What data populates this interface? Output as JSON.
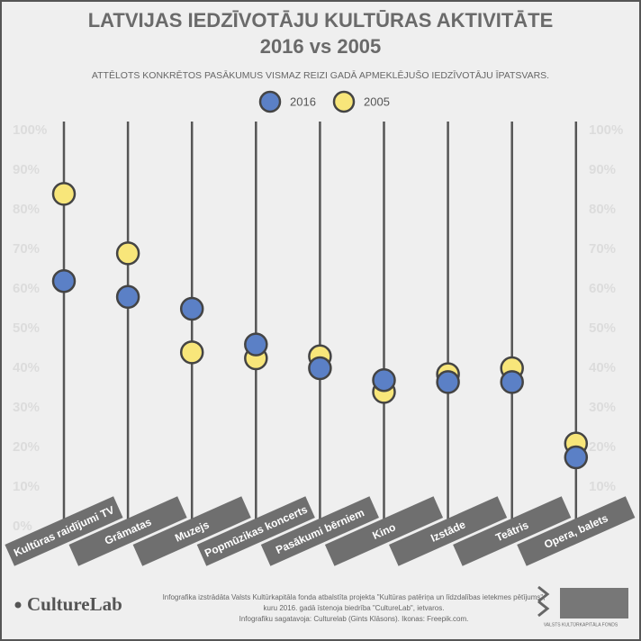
{
  "chart_data": {
    "type": "dotplot",
    "title": "LATVIJAS IEDZĪVOTĀJU KULTŪRAS AKTIVITĀTE",
    "subtitle": "2016 vs 2005",
    "description": "ATTĒLOTS KONKRĒTOS PASĀKUMUS VISMAZ REIZI GADĀ APMEKLĒJUŠO IEDZĪVOTĀJU ĪPATSVARS.",
    "categories": [
      "Kultūras raidījumi TV",
      "Grāmatas",
      "Muzejs",
      "Popmūzikas koncerts",
      "Pasākumi bērniem",
      "Kino",
      "Izstāde",
      "Teātris",
      "Opera, balets"
    ],
    "series": [
      {
        "name": "2016",
        "color": "#5b80c6",
        "values": [
          62,
          58,
          55,
          46,
          40,
          37,
          36.5,
          36.5,
          17.5
        ]
      },
      {
        "name": "2005",
        "color": "#f8e67a",
        "values": [
          84,
          69,
          44,
          42.5,
          43,
          34,
          38.5,
          40,
          21
        ]
      }
    ],
    "ylim": [
      0,
      100
    ],
    "yticks": [
      {
        "value": 0,
        "label": "0%"
      },
      {
        "value": 10,
        "label": "10%"
      },
      {
        "value": 20,
        "label": "20%"
      },
      {
        "value": 30,
        "label": "30%"
      },
      {
        "value": 40,
        "label": "40%"
      },
      {
        "value": 50,
        "label": "50%"
      },
      {
        "value": 60,
        "label": "60%"
      },
      {
        "value": 70,
        "label": "70%"
      },
      {
        "value": 80,
        "label": "80%"
      },
      {
        "value": 90,
        "label": "90%"
      },
      {
        "value": 100,
        "label": "100%"
      }
    ],
    "grid": false
  },
  "footer": {
    "logo": "CultureLab",
    "credits": [
      "Infografika izstrādāta Valsts Kultūrkapitāla fonda atbalstīta projekta \"Kultūras patēriņa un līdzdalības ietekmes pētījums\",",
      "kuru 2016. gadā īstenoja biedrība \"CultureLab\", ietvaros.",
      "Infografiku sagatavoja: Culturelab (Gints Klāsons). Ikonas: Freepik.com."
    ],
    "fund": "VALSTS KULTŪRKAPITĀLA FONDS"
  }
}
